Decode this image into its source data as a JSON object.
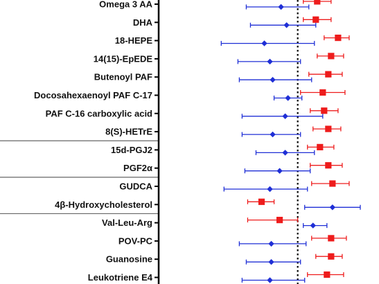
{
  "chart_data": {
    "type": "forest",
    "title": "",
    "xlabel": "",
    "ylabel": "",
    "reference_line": 1.0,
    "xlim": [
      0.0,
      1.45
    ],
    "grid": false,
    "categories": [
      "Omega 3 AA",
      "DHA",
      "18-HEPE",
      "14(15)-EpEDE",
      "Butenoyl PAF",
      "Docosahexaenoyl PAF C-17",
      "PAF C-16 carboxylic acid",
      "8(S)-HETrE",
      "15d-PGJ2",
      "PGF2α",
      "GUDCA",
      "4β-Hydroxycholesterol",
      "Val-Leu-Arg",
      "POV-PC",
      "Guanosine",
      "Leukotriene E4"
    ],
    "group_separators_after": [
      "8(S)-HETrE",
      "PGF2α",
      "4β-Hydroxycholesterol"
    ],
    "series": [
      {
        "marker": "diamond",
        "color": "#1f2fd6",
        "points": [
          {
            "est": 0.88,
            "lo": 0.63,
            "hi": 1.08
          },
          {
            "est": 0.92,
            "lo": 0.66,
            "hi": 1.13
          },
          {
            "est": 0.76,
            "lo": 0.45,
            "hi": 1.12
          },
          {
            "est": 0.8,
            "lo": 0.57,
            "hi": 1.02
          },
          {
            "est": 0.82,
            "lo": 0.58,
            "hi": 1.1
          },
          {
            "est": 0.93,
            "lo": 0.83,
            "hi": 1.03
          },
          {
            "est": 0.91,
            "lo": 0.6,
            "hi": 1.18
          },
          {
            "est": 0.82,
            "lo": 0.6,
            "hi": 1.02
          },
          {
            "est": 0.91,
            "lo": 0.7,
            "hi": 1.12
          },
          {
            "est": 0.87,
            "lo": 0.62,
            "hi": 1.09
          },
          {
            "est": 0.8,
            "lo": 0.47,
            "hi": 1.07
          },
          {
            "est": 1.25,
            "lo": 1.05,
            "hi": 1.45
          },
          {
            "est": 1.11,
            "lo": 1.04,
            "hi": 1.21
          },
          {
            "est": 0.81,
            "lo": 0.58,
            "hi": 1.06
          },
          {
            "est": 0.81,
            "lo": 0.63,
            "hi": 1.02
          },
          {
            "est": 0.8,
            "lo": 0.6,
            "hi": 1.05
          }
        ]
      },
      {
        "marker": "square",
        "color": "#ee1c1c",
        "points": [
          {
            "est": 1.14,
            "lo": 1.04,
            "hi": 1.24
          },
          {
            "est": 1.13,
            "lo": 1.04,
            "hi": 1.24
          },
          {
            "est": 1.29,
            "lo": 1.19,
            "hi": 1.37
          },
          {
            "est": 1.24,
            "lo": 1.14,
            "hi": 1.33
          },
          {
            "est": 1.22,
            "lo": 1.08,
            "hi": 1.32
          },
          {
            "est": 1.18,
            "lo": 1.02,
            "hi": 1.34
          },
          {
            "est": 1.19,
            "lo": 1.09,
            "hi": 1.29
          },
          {
            "est": 1.22,
            "lo": 1.11,
            "hi": 1.31
          },
          {
            "est": 1.16,
            "lo": 1.07,
            "hi": 1.26
          },
          {
            "est": 1.22,
            "lo": 1.09,
            "hi": 1.32
          },
          {
            "est": 1.25,
            "lo": 1.1,
            "hi": 1.37
          },
          {
            "est": 0.74,
            "lo": 0.64,
            "hi": 0.83
          },
          {
            "est": 0.87,
            "lo": 0.64,
            "hi": 1.0
          },
          {
            "est": 1.24,
            "lo": 1.1,
            "hi": 1.35
          },
          {
            "est": 1.24,
            "lo": 1.13,
            "hi": 1.32
          },
          {
            "est": 1.21,
            "lo": 1.07,
            "hi": 1.33
          }
        ]
      }
    ]
  }
}
